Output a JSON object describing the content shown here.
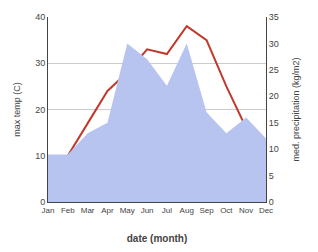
{
  "chart_data": {
    "type": "line",
    "categories": [
      "Jan",
      "Feb",
      "Mar",
      "Apr",
      "May",
      "Jun",
      "Jul",
      "Aug",
      "Sep",
      "Oct",
      "Nov",
      "Dec"
    ],
    "series": [
      {
        "type": "area",
        "axis": "y2",
        "color": "#b8c4f0",
        "values": [
          9,
          9,
          13,
          15,
          30,
          27,
          22,
          30,
          17,
          13,
          16,
          12
        ]
      },
      {
        "type": "line",
        "color": "#c0392b",
        "values": [
          7,
          10,
          17,
          24,
          28,
          33,
          32,
          38,
          35,
          25,
          16,
          11
        ]
      }
    ],
    "xlabel": "date (month)",
    "ylabel": "max temp (C)",
    "y2label": "med. precipitation (kg/m2)",
    "ylim": [
      0,
      40
    ],
    "yticks": [
      0,
      10,
      20,
      30,
      40
    ],
    "y2lim": [
      0,
      35
    ],
    "y2ticks": [
      0,
      5,
      10,
      15,
      20,
      25,
      30,
      35
    ],
    "grid": true
  }
}
